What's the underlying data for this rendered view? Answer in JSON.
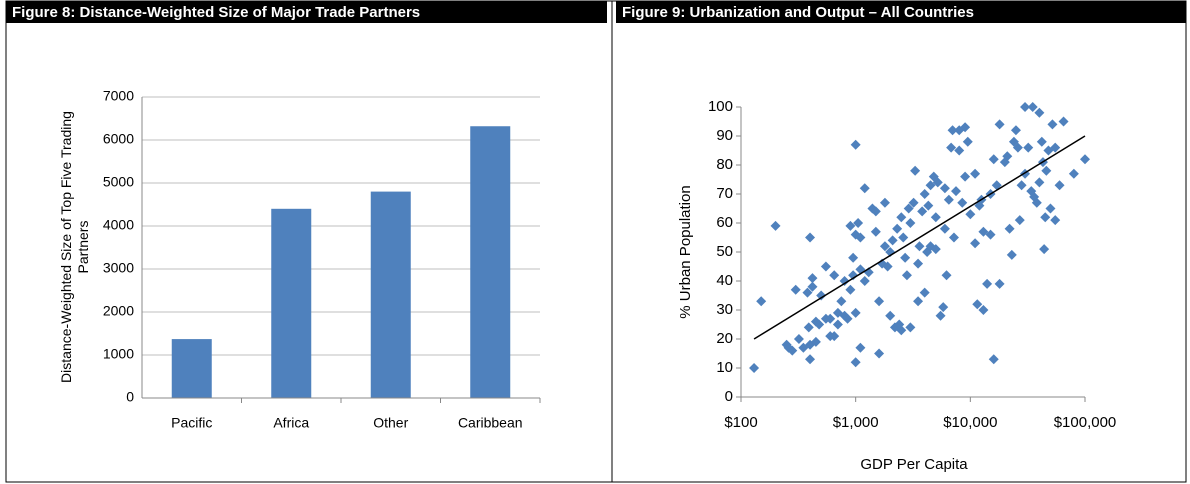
{
  "chart_data": [
    {
      "type": "bar",
      "title": "Figure 8: Distance-Weighted Size of Major Trade Partners",
      "y_label": "Distance-Weighted Size of Top Five Trading Partners",
      "categories": [
        "Pacific",
        "Africa",
        "Other",
        "Caribbean"
      ],
      "values": [
        1370,
        4400,
        4800,
        6320
      ],
      "color": "#4f81bd",
      "ylim": [
        0,
        7000
      ],
      "yticks": [
        0,
        1000,
        2000,
        3000,
        4000,
        5000,
        6000,
        7000
      ],
      "grid": true
    },
    {
      "type": "scatter",
      "title": "Figure 9: Urbanization and Output – All Countries",
      "x_label": "GDP Per Capita",
      "y_label": "% Urban Population",
      "x_scale": "log",
      "color": "#4f81bd",
      "x": [
        130,
        150,
        200,
        250,
        260,
        280,
        300,
        320,
        350,
        380,
        390,
        400,
        400,
        400,
        420,
        420,
        450,
        450,
        480,
        500,
        550,
        550,
        600,
        600,
        650,
        650,
        700,
        700,
        750,
        800,
        800,
        850,
        900,
        900,
        950,
        950,
        1000,
        1000,
        1000,
        1000,
        1050,
        1100,
        1100,
        1100,
        1200,
        1200,
        1300,
        1400,
        1500,
        1500,
        1600,
        1600,
        1700,
        1800,
        1800,
        1900,
        2000,
        2000,
        2100,
        2200,
        2300,
        2400,
        2500,
        2500,
        2600,
        2700,
        2800,
        2900,
        3000,
        3000,
        3200,
        3300,
        3500,
        3500,
        3600,
        3800,
        4000,
        4000,
        4200,
        4300,
        4500,
        4500,
        4800,
        5000,
        5000,
        5200,
        5500,
        5800,
        6000,
        6000,
        6200,
        6500,
        6800,
        7000,
        7200,
        7500,
        8000,
        8000,
        8500,
        9000,
        9000,
        9500,
        10000,
        11000,
        11000,
        11500,
        12000,
        12500,
        13000,
        13000,
        14000,
        15000,
        15000,
        16000,
        16000,
        17000,
        18000,
        18000,
        20000,
        21000,
        22000,
        23000,
        24000,
        25000,
        26000,
        27000,
        28000,
        30000,
        30000,
        32000,
        34000,
        35000,
        36000,
        38000,
        40000,
        40000,
        42000,
        43000,
        44000,
        45000,
        46000,
        48000,
        50000,
        52000,
        55000,
        55000,
        60000,
        65000,
        80000,
        100000
      ],
      "values": [
        10,
        33,
        59,
        18,
        17,
        16,
        37,
        20,
        17,
        36,
        24,
        55,
        13,
        18,
        38,
        41,
        26,
        19,
        25,
        35,
        27,
        45,
        21,
        27,
        21,
        42,
        25,
        29,
        33,
        28,
        40,
        27,
        37,
        59,
        48,
        42,
        29,
        12,
        56,
        87,
        60,
        17,
        55,
        44,
        72,
        40,
        43,
        65,
        57,
        64,
        15,
        33,
        46,
        67,
        52,
        45,
        28,
        50,
        54,
        24,
        58,
        25,
        62,
        23,
        55,
        48,
        42,
        65,
        24,
        60,
        67,
        78,
        33,
        46,
        52,
        64,
        36,
        70,
        50,
        66,
        73,
        52,
        76,
        51,
        62,
        74,
        28,
        31,
        72,
        58,
        42,
        68,
        86,
        92,
        55,
        71,
        92,
        85,
        67,
        93,
        76,
        88,
        63,
        53,
        77,
        32,
        66,
        68,
        57,
        30,
        39,
        70,
        56,
        13,
        82,
        73,
        94,
        39,
        81,
        83,
        58,
        49,
        88,
        92,
        86,
        61,
        73,
        100,
        77,
        86,
        71,
        100,
        69,
        67,
        74,
        98,
        88,
        81,
        51,
        62,
        78,
        85,
        65,
        94,
        61,
        86,
        73,
        95,
        77,
        82
      ],
      "trendline": {
        "x": [
          130,
          100000
        ],
        "values": [
          20,
          90
        ]
      },
      "xlim": [
        100,
        100000
      ],
      "xticks": [
        {
          "value": 100,
          "label": "$100"
        },
        {
          "value": 1000,
          "label": "$1,000"
        },
        {
          "value": 10000,
          "label": "$10,000"
        },
        {
          "value": 100000,
          "label": "$100,000"
        }
      ],
      "ylim": [
        0,
        100
      ],
      "yticks": [
        0,
        10,
        20,
        30,
        40,
        50,
        60,
        70,
        80,
        90,
        100
      ]
    }
  ]
}
